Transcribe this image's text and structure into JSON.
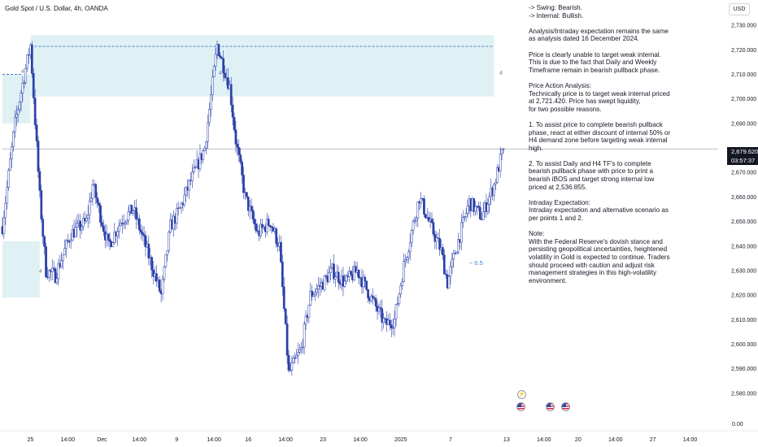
{
  "symbol": {
    "title": "Gold Spot / U.S. Dollar, 4h, OANDA"
  },
  "currency_button": "USD",
  "current_price": {
    "price": "2,679.620",
    "countdown": "03:57:37"
  },
  "analysis_notes": [
    "-> Swing:  Bearish.\n-> Internal:  Bullish.",
    "Analysis/Intraday expectation remains the same as analysis dated 16 December 2024.",
    "Price is clearly unable to target weak internal. This is due to the fact that Daily and Weekly Timeframe remain in bearish pullback phase.",
    "Price Action Analysis:\nTechnically price is to target weak internal priced at 2,721.420. Price has swept liquidity,\nfor two possible reasons.",
    "1.  To assist price to complete bearish pullback phase, react at either discount of internal 50% or H4 demand zone before targeting weak internal high.",
    "2.  To assist Daily and H4 TF's to complete bearish pullback phase with price to print a bearish iBOS and target strong internal low priced at  2,536.855.",
    "Intraday Expectation:\nIntraday expectation and alternative scenario as per points 1 and 2.",
    "Note:\nWith the Federal Reserve's dovish stance and persisting geopolitical uncertainties, heightened volatility in Gold is expected to continue. Traders should proceed with caution and adjust risk management strategies in this high-volatility environment."
  ],
  "annotations": {
    "fib_label": "0.5",
    "zone_mark_left_top": "4",
    "zone_mark_left_bottom": "4",
    "zone_mark_mid": "4",
    "zone_mark_right": "4"
  },
  "event_icons": [
    "lightning-icon",
    "us-flag-icon",
    "us-flag-icon",
    "us-flag-icon"
  ],
  "colors": {
    "candle_color": "#2a3fa8",
    "zone_fill": "#dff1f4",
    "dashed_line": "#4a72c8",
    "fib_label": "#3b7ddd",
    "price_line": "#9598a1",
    "tag_bg": "#131722"
  },
  "chart_data": {
    "type": "candlestick",
    "title": "Gold Spot / U.S. Dollar, 4h, OANDA",
    "y_axis": {
      "side": "right",
      "ylim": [
        2574,
        2737
      ],
      "ticks": [
        {
          "value": 2730,
          "label": "2,730.000"
        },
        {
          "value": 2720,
          "label": "2,720.000"
        },
        {
          "value": 2710,
          "label": "2,710.000"
        },
        {
          "value": 2700,
          "label": "2,700.000"
        },
        {
          "value": 2690,
          "label": "2,690.000"
        },
        {
          "value": 2670,
          "label": "2,670.000"
        },
        {
          "value": 2660,
          "label": "2,660.000"
        },
        {
          "value": 2650,
          "label": "2,650.000"
        },
        {
          "value": 2640,
          "label": "2,640.000"
        },
        {
          "value": 2630,
          "label": "2,630.000"
        },
        {
          "value": 2620,
          "label": "2,620.000"
        },
        {
          "value": 2610,
          "label": "2,610.000"
        },
        {
          "value": 2600,
          "label": "2,600.000"
        },
        {
          "value": 2590,
          "label": "2,590.000"
        },
        {
          "value": 2580,
          "label": "2,580.000"
        }
      ],
      "extra_label": "0.00"
    },
    "x_axis": {
      "bar_range": [
        0,
        230
      ],
      "ticks": [
        {
          "bar": 9,
          "label": "25"
        },
        {
          "bar": 21,
          "label": "14:00"
        },
        {
          "bar": 32,
          "label": "Dec"
        },
        {
          "bar": 44,
          "label": "14:00"
        },
        {
          "bar": 56,
          "label": "9"
        },
        {
          "bar": 68,
          "label": "14:00"
        },
        {
          "bar": 79,
          "label": "16"
        },
        {
          "bar": 91,
          "label": "14:00"
        },
        {
          "bar": 103,
          "label": "23"
        },
        {
          "bar": 115,
          "label": "14:00"
        },
        {
          "bar": 128,
          "label": "2025"
        },
        {
          "bar": 144,
          "label": "7"
        },
        {
          "bar": 162,
          "label": "13"
        },
        {
          "bar": 174,
          "label": "14:00"
        },
        {
          "bar": 185,
          "label": "20"
        },
        {
          "bar": 197,
          "label": "14:00"
        },
        {
          "bar": 209,
          "label": "27"
        },
        {
          "bar": 221,
          "label": "14:00"
        }
      ]
    },
    "current_price": 2679.62,
    "swing_path": [
      [
        0,
        2648
      ],
      [
        4,
        2690
      ],
      [
        9,
        2722
      ],
      [
        12,
        2660
      ],
      [
        14,
        2630
      ],
      [
        17,
        2628
      ],
      [
        22,
        2645
      ],
      [
        27,
        2650
      ],
      [
        29,
        2665
      ],
      [
        34,
        2640
      ],
      [
        38,
        2650
      ],
      [
        42,
        2655
      ],
      [
        46,
        2640
      ],
      [
        51,
        2620
      ],
      [
        54,
        2648
      ],
      [
        57,
        2655
      ],
      [
        60,
        2665
      ],
      [
        65,
        2680
      ],
      [
        69,
        2722
      ],
      [
        73,
        2705
      ],
      [
        75,
        2683
      ],
      [
        78,
        2660
      ],
      [
        82,
        2645
      ],
      [
        86,
        2650
      ],
      [
        89,
        2640
      ],
      [
        92,
        2588
      ],
      [
        96,
        2598
      ],
      [
        99,
        2620
      ],
      [
        103,
        2625
      ],
      [
        106,
        2630
      ],
      [
        110,
        2625
      ],
      [
        114,
        2630
      ],
      [
        118,
        2620
      ],
      [
        123,
        2608
      ],
      [
        126,
        2610
      ],
      [
        129,
        2632
      ],
      [
        134,
        2660
      ],
      [
        137,
        2650
      ],
      [
        141,
        2638
      ],
      [
        143,
        2625
      ],
      [
        146,
        2640
      ],
      [
        150,
        2658
      ],
      [
        154,
        2652
      ],
      [
        158,
        2665
      ],
      [
        161,
        2680
      ]
    ],
    "zones": [
      {
        "type": "supply",
        "price_range": [
          2701,
          2726
        ],
        "bar_range": [
          9,
          158
        ]
      },
      {
        "type": "zone",
        "price_range": [
          2690,
          2710
        ],
        "bar_range": [
          0,
          9
        ]
      },
      {
        "type": "demand",
        "price_range": [
          2619,
          2642
        ],
        "bar_range": [
          0,
          12
        ]
      }
    ],
    "levels": [
      {
        "price": 2721.42,
        "style": "dashed",
        "bar_range": [
          9,
          158
        ]
      },
      {
        "price": 2710.0,
        "style": "dashed",
        "bar_range": [
          0,
          6
        ]
      },
      {
        "price": 2679.62,
        "style": "solid",
        "bar_range": [
          0,
          230
        ]
      }
    ],
    "fib_level": {
      "label": "0.5",
      "price": 2633,
      "bar": 150
    }
  }
}
